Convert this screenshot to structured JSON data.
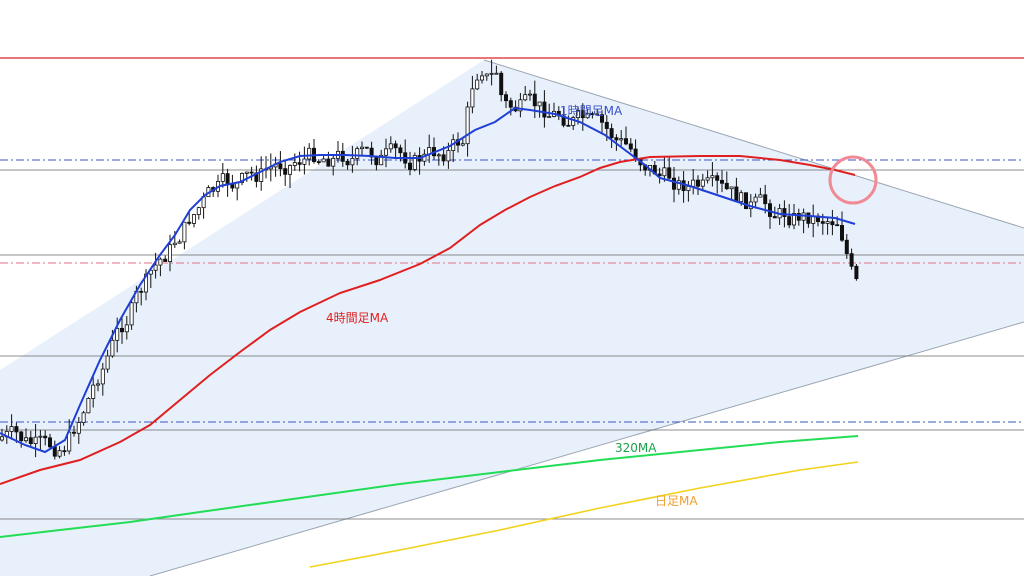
{
  "chart_data": {
    "type": "candlestick",
    "title": "",
    "xlabel": "",
    "ylabel": "",
    "ylim": [
      0,
      576
    ],
    "x_count": 180,
    "colors": {
      "background": "#ffffff",
      "triangle_fill": "#e6f0fb",
      "triangle_edge": "#9aa6b2",
      "candle": "#111111",
      "ma_1h": "#1f3fd6",
      "ma_4h": "#e02020",
      "ma_320": "#22dd55",
      "ma_daily": "#f2d21b",
      "resistance": "#e02020",
      "level_blue": "#3a55c8",
      "level_pink": "#e0708a",
      "level_grey": "#555555",
      "highlight_circle": "#f08a95"
    },
    "series": [
      {
        "name": "1時間足MA",
        "label_color": "#1f3fd6",
        "points": [
          [
            0,
            433
          ],
          [
            25,
            445
          ],
          [
            45,
            452
          ],
          [
            65,
            440
          ],
          [
            80,
            405
          ],
          [
            100,
            360
          ],
          [
            120,
            320
          ],
          [
            140,
            285
          ],
          [
            160,
            255
          ],
          [
            175,
            235
          ],
          [
            190,
            210
          ],
          [
            205,
            195
          ],
          [
            220,
            186
          ],
          [
            240,
            182
          ],
          [
            260,
            172
          ],
          [
            280,
            162
          ],
          [
            300,
            156
          ],
          [
            320,
            155
          ],
          [
            345,
            155
          ],
          [
            370,
            156
          ],
          [
            395,
            158
          ],
          [
            420,
            158
          ],
          [
            450,
            146
          ],
          [
            475,
            130
          ],
          [
            495,
            122
          ],
          [
            515,
            108
          ],
          [
            530,
            110
          ],
          [
            555,
            114
          ],
          [
            580,
            122
          ],
          [
            605,
            135
          ],
          [
            625,
            150
          ],
          [
            645,
            165
          ],
          [
            660,
            178
          ],
          [
            690,
            186
          ],
          [
            720,
            196
          ],
          [
            750,
            206
          ],
          [
            780,
            214
          ],
          [
            810,
            216
          ],
          [
            835,
            218
          ],
          [
            855,
            224
          ]
        ]
      },
      {
        "name": "4時間足MA",
        "label_color": "#e02020",
        "points": [
          [
            0,
            484
          ],
          [
            40,
            470
          ],
          [
            80,
            460
          ],
          [
            120,
            442
          ],
          [
            150,
            425
          ],
          [
            180,
            400
          ],
          [
            210,
            375
          ],
          [
            240,
            352
          ],
          [
            270,
            330
          ],
          [
            300,
            312
          ],
          [
            340,
            293
          ],
          [
            380,
            280
          ],
          [
            420,
            264
          ],
          [
            450,
            248
          ],
          [
            480,
            225
          ],
          [
            505,
            210
          ],
          [
            530,
            197
          ],
          [
            555,
            186
          ],
          [
            580,
            177
          ],
          [
            600,
            168
          ],
          [
            620,
            162
          ],
          [
            650,
            157
          ],
          [
            700,
            156
          ],
          [
            740,
            156
          ],
          [
            780,
            160
          ],
          [
            810,
            165
          ],
          [
            835,
            170
          ],
          [
            855,
            175
          ]
        ]
      },
      {
        "name": "320MA",
        "label_color": "#22aa55",
        "points": [
          [
            0,
            537
          ],
          [
            60,
            530
          ],
          [
            130,
            522
          ],
          [
            200,
            512
          ],
          [
            300,
            498
          ],
          [
            400,
            484
          ],
          [
            500,
            472
          ],
          [
            600,
            460
          ],
          [
            700,
            450
          ],
          [
            780,
            442
          ],
          [
            858,
            436
          ]
        ]
      },
      {
        "name": "日足MA",
        "label_color": "#f0a030",
        "points": [
          [
            310,
            567
          ],
          [
            400,
            550
          ],
          [
            500,
            530
          ],
          [
            600,
            508
          ],
          [
            700,
            488
          ],
          [
            800,
            470
          ],
          [
            858,
            462
          ]
        ]
      }
    ],
    "labels": [
      {
        "text": "1時間足MA",
        "color": "#3a50c8",
        "anchor": "ma_1h"
      },
      {
        "text": "4時間足MA",
        "color": "#e02020",
        "anchor": "ma_4h"
      },
      {
        "text": "320MA",
        "color": "#1aa24a",
        "anchor": "ma_320"
      },
      {
        "text": "日足MA",
        "color": "#f0a030",
        "anchor": "ma_daily"
      }
    ]
  }
}
